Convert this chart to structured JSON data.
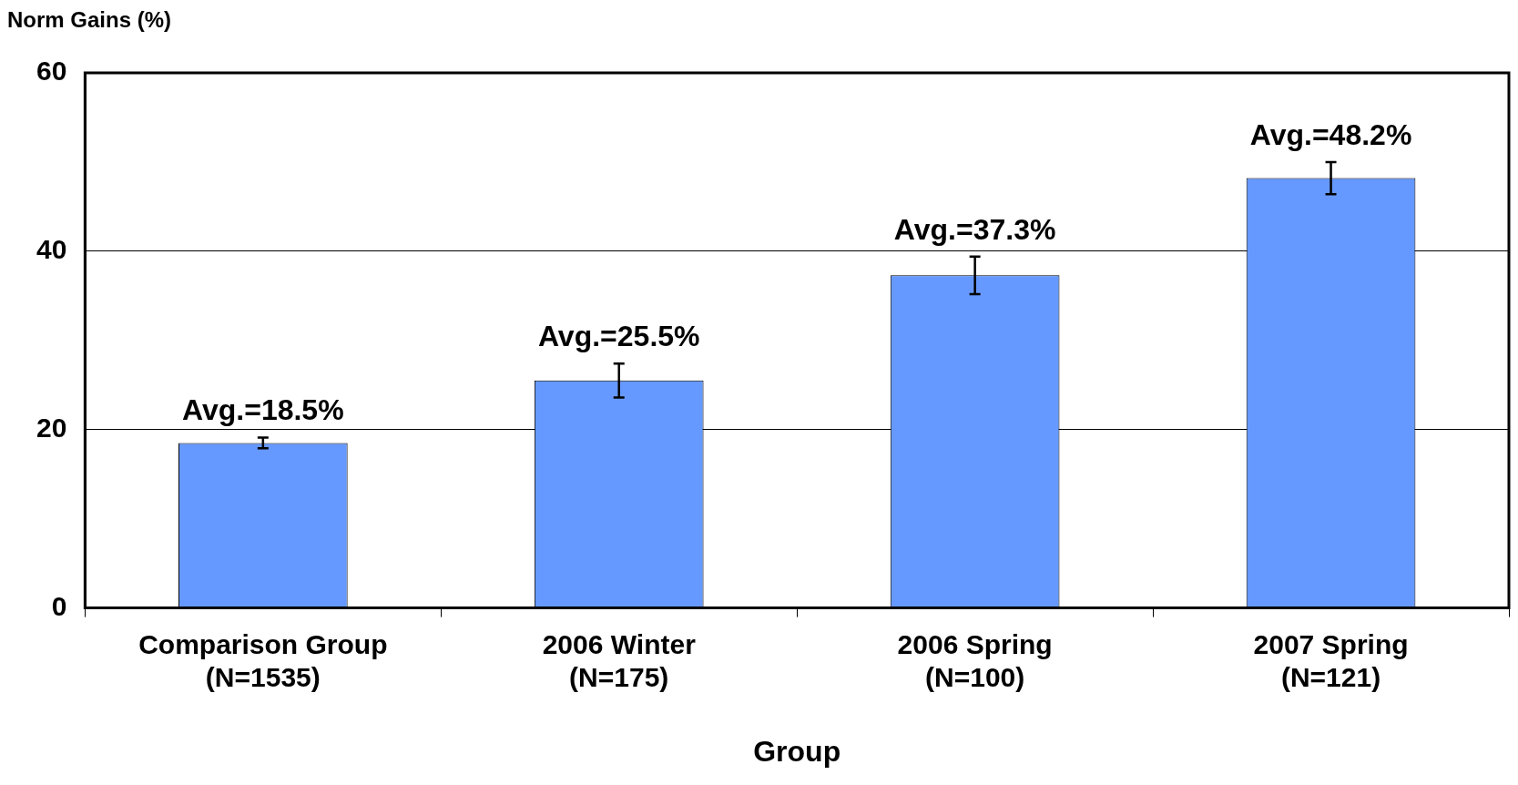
{
  "chart_data": {
    "type": "bar",
    "ylabel": "Norm Gains (%)",
    "xlabel": "Group",
    "categories": [
      "Comparison Group(N=1535)",
      "2006 Winter (N=175)",
      "2006 Spring (N=100)",
      "2007 Spring (N=121)"
    ],
    "values": [
      18.5,
      25.5,
      37.3,
      48.2
    ],
    "errors": [
      0.6,
      1.9,
      2.1,
      1.8
    ],
    "value_labels": [
      "Avg.=18.5%",
      "Avg.=25.5%",
      "Avg.=37.3%",
      "Avg.=48.2%"
    ],
    "color": "#6699ff",
    "ylim": [
      0,
      60
    ],
    "yticks": [
      0,
      20,
      40,
      60
    ],
    "grid": "y",
    "legend": false
  }
}
